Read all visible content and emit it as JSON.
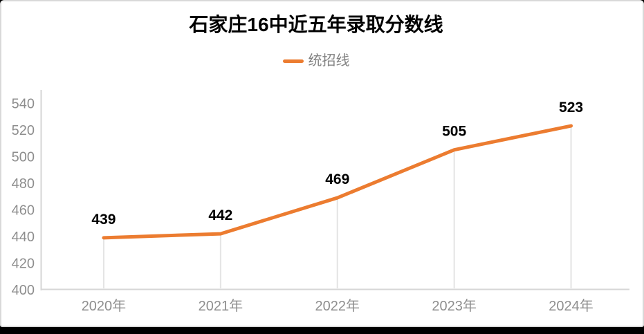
{
  "chart_data": {
    "type": "line",
    "title": "石家庄16中近五年录取分数线",
    "categories": [
      "2020年",
      "2021年",
      "2022年",
      "2023年",
      "2024年"
    ],
    "series": [
      {
        "name": "统招线",
        "values": [
          439,
          442,
          469,
          505,
          523
        ],
        "color": "#ec7c30"
      }
    ],
    "y_ticks": [
      400,
      420,
      440,
      460,
      480,
      500,
      520,
      540
    ],
    "ylim": [
      400,
      550
    ],
    "xlabel": "",
    "ylabel": "",
    "grid": false,
    "legend_position": "top-center",
    "value_labels_shown": true,
    "colors": {
      "line": "#ec7c30",
      "axis_line": "#d6d6d6",
      "tick_label": "#8e8e8e",
      "value_label": "#000000",
      "drop_line": "#e4e4e4",
      "legend_text": "#828282",
      "card_background": "#ffffff",
      "card_border": "#d9d9d9",
      "outer_background": "#000000"
    }
  }
}
